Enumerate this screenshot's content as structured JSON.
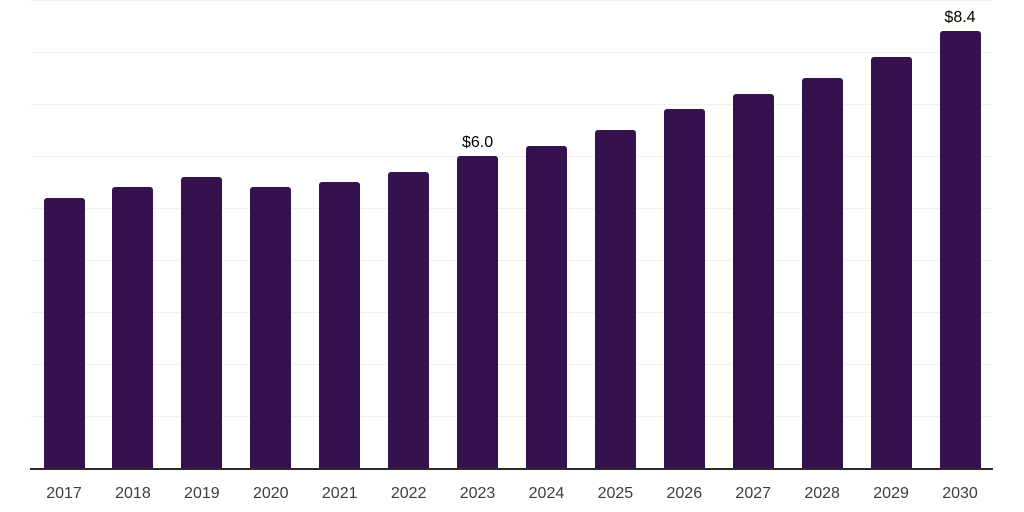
{
  "chart_data": {
    "type": "bar",
    "categories": [
      "2017",
      "2018",
      "2019",
      "2020",
      "2021",
      "2022",
      "2023",
      "2024",
      "2025",
      "2026",
      "2027",
      "2028",
      "2029",
      "2030"
    ],
    "values": [
      5.2,
      5.4,
      5.6,
      5.4,
      5.5,
      5.7,
      6.0,
      6.2,
      6.5,
      6.9,
      7.2,
      7.5,
      7.9,
      8.4
    ],
    "bar_labels": [
      "",
      "",
      "",
      "",
      "",
      "",
      "$6.0",
      "",
      "",
      "",
      "",
      "",
      "",
      "$8.4"
    ],
    "title": "",
    "xlabel": "",
    "ylabel": "",
    "ylim": [
      0,
      9
    ],
    "gridline_interval": 1,
    "grid": "horizontal",
    "legend": "none",
    "colors": {
      "bar": "#35124d",
      "gridline": "#f0f0f0",
      "axis_line": "#2b2b2b",
      "value_label": "#000000",
      "tick_label": "#3d3d3d",
      "background": "#ffffff"
    }
  }
}
